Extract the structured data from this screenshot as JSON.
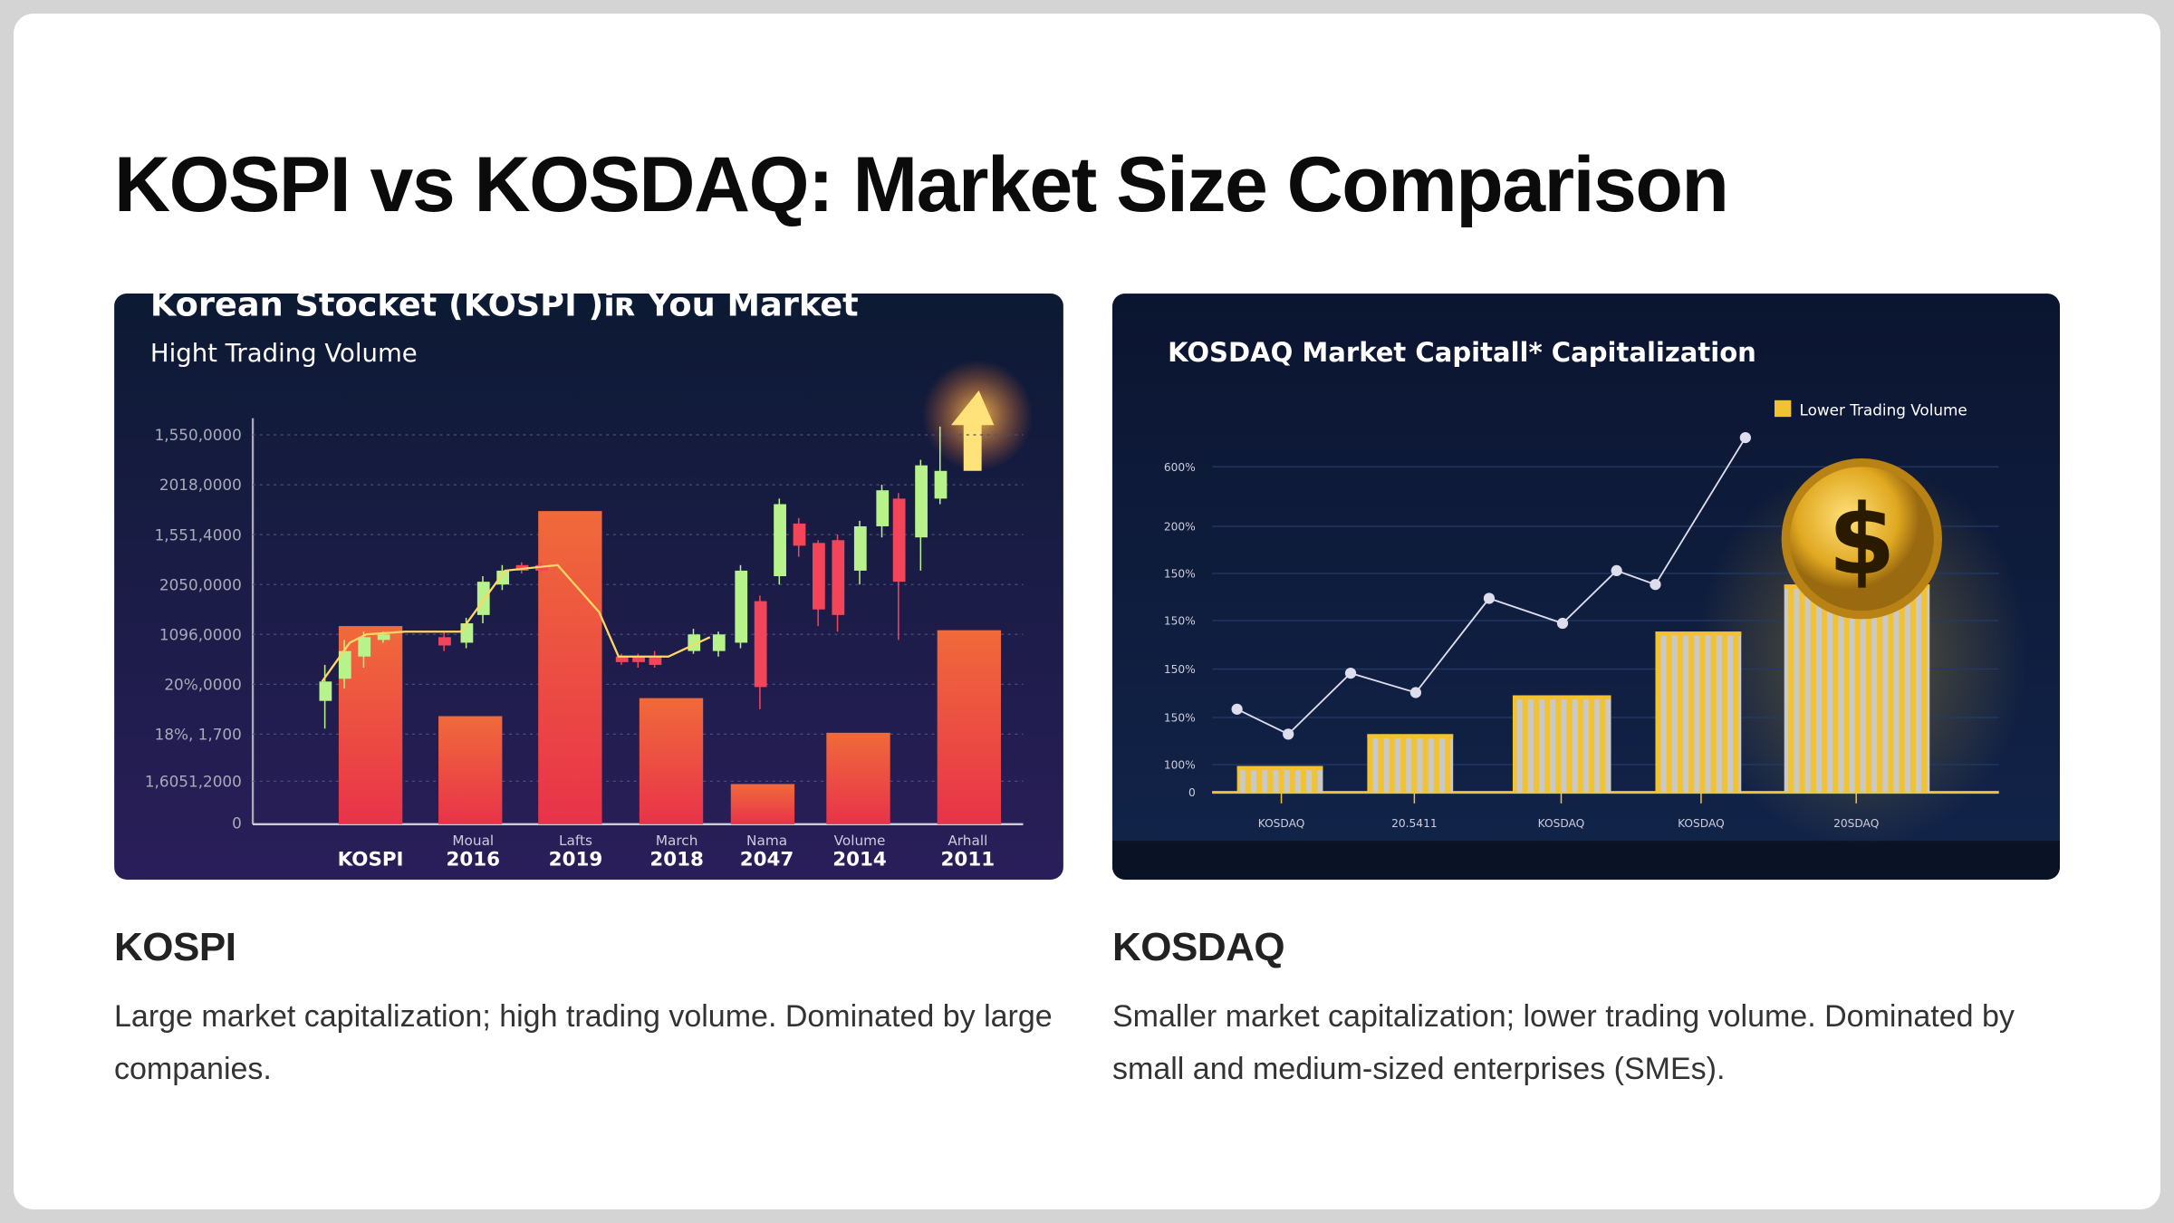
{
  "header": {
    "title": "KOSPI vs KOSDAQ: Market Size Comparison"
  },
  "cards": [
    {
      "image": {
        "title": "Korean Stocket (KOSPI )iʀ You Market",
        "subtitle": "Hight Trading Volume",
        "y_labels": [
          "1,550,0000",
          "2018,0000",
          "1,551,4000",
          "2050,0000",
          "1096,0000",
          "20%,0000",
          "18%, 1,700",
          "1,6051,2000",
          "0"
        ],
        "x_labels_top": [
          "Moual",
          "Lafts",
          "March",
          "Nama",
          "Volume",
          "Arhall"
        ],
        "x_labels": [
          "KOSPI",
          "2016",
          "2019",
          "2018",
          "2047",
          "2014",
          "2011"
        ]
      },
      "heading": "KOSPI",
      "text": "Large market capitalization; high trading volume. Dominated by large companies."
    },
    {
      "image": {
        "title": "KOSDAQ Market Capitall* Capitalization",
        "legend": "Lower Trading Volume",
        "y_labels": [
          "600%",
          "200%",
          "150%",
          "150%",
          "150%",
          "150%",
          "100%",
          "0"
        ],
        "x_labels": [
          "KOSDAQ",
          "20.5411",
          "KOSDAQ",
          "KOSDAQ",
          "20SDAQ"
        ],
        "coin": "$"
      },
      "heading": "KOSDAQ",
      "text": "Smaller market capitalization; lower trading volume. Dominated by small and medium-sized enterprises (SMEs)."
    }
  ]
}
